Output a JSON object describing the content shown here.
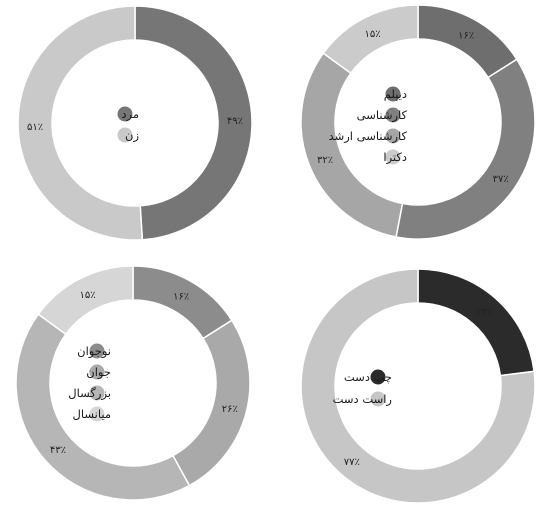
{
  "chart_data": [
    {
      "type": "pie",
      "style": "donut",
      "categories": [
        "مرد",
        "زن"
      ],
      "values": [
        49,
        51
      ],
      "labels": [
        "۴۹٪",
        "۵۱٪"
      ],
      "colors": [
        "#767676",
        "#c9c9c9"
      ]
    },
    {
      "type": "pie",
      "style": "donut",
      "categories": [
        "دیپلم",
        "کارشناسی",
        "کارشناسی ارشد",
        "دکترا"
      ],
      "values": [
        16,
        37,
        32,
        15
      ],
      "labels": [
        "۱۶٪",
        "۳۷٪",
        "۳۲٪",
        "۱۵٪"
      ],
      "colors": [
        "#6e6e6e",
        "#808080",
        "#a6a6a6",
        "#cbcbcb"
      ]
    },
    {
      "type": "pie",
      "style": "donut",
      "categories": [
        "نوجوان",
        "جوان",
        "بزرگسال",
        "میانسال"
      ],
      "values": [
        16,
        26,
        43,
        15
      ],
      "labels": [
        "۱۶٪",
        "۲۶٪",
        "۴۳٪",
        "۱۵٪"
      ],
      "colors": [
        "#8c8c8c",
        "#a9a9a9",
        "#b6b6b6",
        "#d6d6d6"
      ]
    },
    {
      "type": "pie",
      "style": "donut",
      "categories": [
        "چپ دست",
        "راست دست"
      ],
      "values": [
        23,
        77
      ],
      "labels": [
        "۲۳٪",
        "۷۷٪"
      ],
      "colors": [
        "#2b2b2b",
        "#c6c6c6"
      ]
    }
  ]
}
